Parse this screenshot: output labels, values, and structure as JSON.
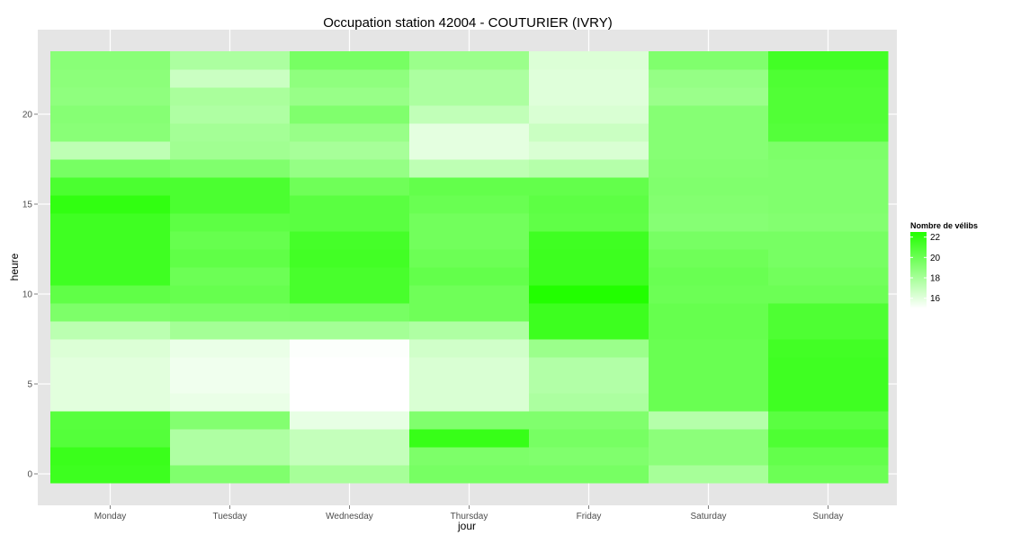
{
  "chart_data": {
    "type": "heatmap",
    "title": "Occupation station 42004 - COUTURIER (IVRY)",
    "xlabel": "jour",
    "ylabel": "heure",
    "categories": [
      "Monday",
      "Tuesday",
      "Wednesday",
      "Thursday",
      "Friday",
      "Saturday",
      "Sunday"
    ],
    "y_ticks": [
      0,
      5,
      10,
      15,
      20
    ],
    "ylim": [
      -0.5,
      23.5
    ],
    "hours": [
      0,
      1,
      2,
      3,
      4,
      5,
      6,
      7,
      8,
      9,
      10,
      11,
      12,
      13,
      14,
      15,
      16,
      17,
      18,
      19,
      20,
      21,
      22,
      23
    ],
    "values": [
      [
        21.6,
        21.7,
        20.8,
        20.7,
        16.0,
        16.0,
        16.0,
        16.2,
        17.3,
        19.4,
        20.4,
        21.5,
        21.5,
        21.5,
        21.5,
        22.0,
        21.1,
        19.6,
        17.2,
        19.0,
        19.1,
        18.8,
        18.9,
        19.0
      ],
      [
        19.3,
        17.7,
        17.7,
        19.2,
        15.7,
        15.5,
        15.5,
        15.7,
        18.1,
        19.5,
        20.2,
        20.0,
        20.4,
        20.2,
        20.5,
        21.1,
        21.1,
        19.3,
        18.2,
        18.1,
        17.7,
        17.9,
        16.8,
        17.8
      ],
      [
        18.0,
        17.0,
        17.0,
        15.8,
        15.0,
        15.0,
        15.0,
        15.1,
        18.1,
        19.6,
        21.2,
        21.2,
        21.4,
        21.3,
        20.6,
        20.6,
        19.9,
        18.6,
        18.0,
        18.5,
        19.3,
        18.5,
        18.8,
        19.6
      ],
      [
        19.6,
        19.4,
        21.8,
        19.3,
        16.3,
        16.3,
        16.3,
        16.6,
        17.7,
        19.9,
        19.9,
        20.3,
        20.0,
        19.8,
        19.8,
        20.1,
        20.3,
        17.2,
        15.9,
        15.9,
        17.1,
        17.8,
        17.8,
        18.4
      ],
      [
        19.6,
        19.3,
        19.6,
        19.3,
        17.8,
        17.6,
        17.6,
        18.4,
        21.6,
        21.6,
        22.5,
        21.6,
        21.6,
        21.5,
        20.4,
        20.5,
        20.3,
        17.5,
        16.3,
        16.8,
        16.3,
        16.1,
        16.1,
        16.2
      ],
      [
        18.0,
        18.9,
        18.9,
        17.5,
        20.1,
        20.1,
        20.1,
        20.1,
        20.2,
        20.2,
        20.0,
        20.1,
        19.9,
        19.6,
        19.1,
        19.2,
        19.3,
        19.2,
        19.1,
        19.1,
        19.1,
        18.4,
        18.6,
        19.3
      ],
      [
        20.0,
        20.3,
        21.0,
        20.6,
        21.5,
        21.5,
        21.5,
        21.4,
        21.0,
        21.0,
        20.0,
        19.8,
        19.6,
        19.6,
        19.2,
        19.3,
        19.3,
        19.3,
        19.4,
        20.8,
        20.9,
        20.9,
        21.0,
        21.4
      ]
    ],
    "color_scale": {
      "low_color": "#ffffff",
      "high_color": "#22ff00",
      "min": 15,
      "max": 22.5
    },
    "legend": {
      "title": "Nombre de vélibs",
      "ticks": [
        16,
        18,
        20,
        22
      ],
      "position": "right"
    },
    "grid": true,
    "panel_background": "#e5e5e5"
  }
}
